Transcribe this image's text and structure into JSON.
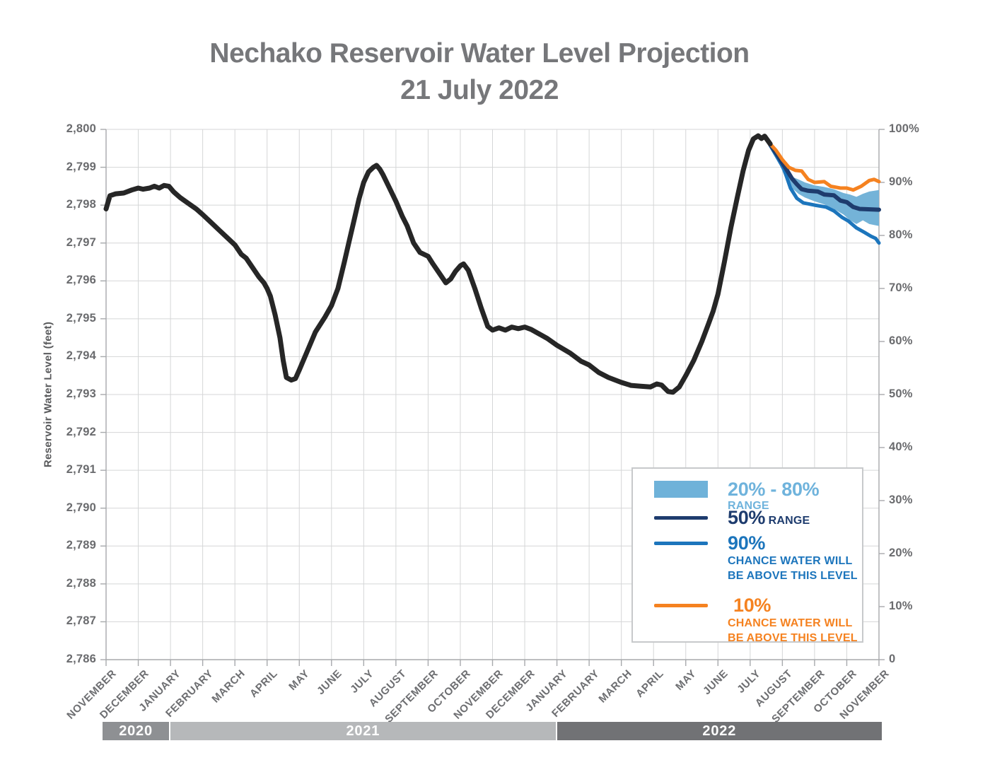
{
  "title": {
    "line1": "Nechako Reservoir Water Level Projection",
    "line2": "21 July 2022"
  },
  "y_axis": {
    "label": "Reservoir Water Level (feet)",
    "ticks": [
      "2,800",
      "2,799",
      "2,798",
      "2,797",
      "2,796",
      "2,795",
      "2,794",
      "2,793",
      "2,792",
      "2,791",
      "2,790",
      "2,789",
      "2,788",
      "2,787",
      "2,786"
    ]
  },
  "right_axis": {
    "ticks": [
      "100%",
      "90%",
      "80%",
      "70%",
      "60%",
      "50%",
      "40%",
      "30%",
      "20%",
      "10%",
      "0"
    ]
  },
  "year_bands": [
    {
      "label": "2020",
      "start": 0,
      "end": 2,
      "color": "#8E9093"
    },
    {
      "label": "2021",
      "start": 2,
      "end": 14,
      "color": "#B6B8BA"
    },
    {
      "label": "2022",
      "start": 14,
      "end": 24,
      "color": "#717275"
    }
  ],
  "legend": {
    "items": [
      {
        "big": "20% - 80%",
        "small": "RANGE"
      },
      {
        "big": "50%",
        "small": "RANGE"
      },
      {
        "big": "90%",
        "sub1": "CHANCE WATER WILL",
        "sub2": "BE ABOVE THIS LEVEL"
      },
      {
        "big": "10%",
        "sub1": "CHANCE WATER WILL",
        "sub2": "BE ABOVE THIS LEVEL"
      }
    ]
  },
  "colors": {
    "historical": "#262626",
    "orange_10pct": "#F58220",
    "navy_50pct": "#1E3C6E",
    "blue_90pct": "#1C75BC",
    "band_20_80": "#74B3D8",
    "gridline": "#D5D6D7",
    "axis": "#A7A9AC",
    "title_text": "#76777A",
    "axis_text": "#6A6B6E"
  },
  "chart_data": {
    "type": "line",
    "title": "Nechako Reservoir Water Level Projection 21 July 2022",
    "xlabel": "",
    "ylabel": "Reservoir Water Level (feet)",
    "x_unit": "months since November 2020 (0 = Nov 2020, 24 = Nov 2022)",
    "x_labels": [
      "NOVEMBER",
      "DECEMBER",
      "JANUARY",
      "FEBRUARY",
      "MARCH",
      "APRIL",
      "MAY",
      "JUNE",
      "JULY",
      "AUGUST",
      "SEPTEMBER",
      "OCTOBER",
      "NOVEMBER",
      "DECEMBER",
      "JANUARY",
      "FEBRUARY",
      "MARCH",
      "APRIL",
      "MAY",
      "JUNE",
      "JULY",
      "AUGUST",
      "SEPTEMBER",
      "OCTOBER",
      "NOVEMBER"
    ],
    "ylim": [
      2786,
      2800
    ],
    "y2lim": [
      0,
      100
    ],
    "grid": true,
    "legend_position": "lower right",
    "series": [
      {
        "name": "Historical water level",
        "color": "#262626",
        "width": 7,
        "points": [
          [
            0,
            2797.9
          ],
          [
            0.12,
            2798.25
          ],
          [
            0.3,
            2798.3
          ],
          [
            0.55,
            2798.32
          ],
          [
            0.8,
            2798.4
          ],
          [
            1,
            2798.45
          ],
          [
            1.15,
            2798.42
          ],
          [
            1.35,
            2798.45
          ],
          [
            1.5,
            2798.5
          ],
          [
            1.65,
            2798.45
          ],
          [
            1.8,
            2798.52
          ],
          [
            1.95,
            2798.5
          ],
          [
            2.1,
            2798.35
          ],
          [
            2.3,
            2798.2
          ],
          [
            2.55,
            2798.05
          ],
          [
            2.8,
            2797.9
          ],
          [
            3,
            2797.75
          ],
          [
            3.25,
            2797.55
          ],
          [
            3.5,
            2797.35
          ],
          [
            3.75,
            2797.15
          ],
          [
            4,
            2796.95
          ],
          [
            4.2,
            2796.7
          ],
          [
            4.35,
            2796.6
          ],
          [
            4.55,
            2796.35
          ],
          [
            4.75,
            2796.1
          ],
          [
            4.9,
            2795.95
          ],
          [
            5,
            2795.8
          ],
          [
            5.1,
            2795.6
          ],
          [
            5.25,
            2795.1
          ],
          [
            5.4,
            2794.5
          ],
          [
            5.5,
            2793.9
          ],
          [
            5.6,
            2793.45
          ],
          [
            5.75,
            2793.38
          ],
          [
            5.88,
            2793.42
          ],
          [
            6,
            2793.65
          ],
          [
            6.2,
            2794.05
          ],
          [
            6.5,
            2794.65
          ],
          [
            6.8,
            2795.05
          ],
          [
            7,
            2795.35
          ],
          [
            7.2,
            2795.8
          ],
          [
            7.4,
            2796.5
          ],
          [
            7.55,
            2797.05
          ],
          [
            7.7,
            2797.6
          ],
          [
            7.85,
            2798.15
          ],
          [
            8,
            2798.6
          ],
          [
            8.15,
            2798.88
          ],
          [
            8.3,
            2799.0
          ],
          [
            8.4,
            2799.05
          ],
          [
            8.5,
            2798.95
          ],
          [
            8.6,
            2798.8
          ],
          [
            8.8,
            2798.45
          ],
          [
            9,
            2798.1
          ],
          [
            9.2,
            2797.7
          ],
          [
            9.35,
            2797.45
          ],
          [
            9.55,
            2797.0
          ],
          [
            9.75,
            2796.75
          ],
          [
            10,
            2796.65
          ],
          [
            10.15,
            2796.45
          ],
          [
            10.35,
            2796.2
          ],
          [
            10.55,
            2795.95
          ],
          [
            10.7,
            2796.05
          ],
          [
            10.85,
            2796.25
          ],
          [
            11,
            2796.4
          ],
          [
            11.1,
            2796.45
          ],
          [
            11.25,
            2796.28
          ],
          [
            11.45,
            2795.8
          ],
          [
            11.65,
            2795.28
          ],
          [
            11.85,
            2794.8
          ],
          [
            12,
            2794.7
          ],
          [
            12.2,
            2794.76
          ],
          [
            12.4,
            2794.7
          ],
          [
            12.6,
            2794.78
          ],
          [
            12.8,
            2794.74
          ],
          [
            13,
            2794.78
          ],
          [
            13.2,
            2794.72
          ],
          [
            13.45,
            2794.6
          ],
          [
            13.7,
            2794.48
          ],
          [
            14,
            2794.3
          ],
          [
            14.4,
            2794.1
          ],
          [
            14.75,
            2793.88
          ],
          [
            15,
            2793.78
          ],
          [
            15.3,
            2793.58
          ],
          [
            15.6,
            2793.45
          ],
          [
            16,
            2793.32
          ],
          [
            16.3,
            2793.24
          ],
          [
            16.6,
            2793.22
          ],
          [
            16.9,
            2793.2
          ],
          [
            17.1,
            2793.28
          ],
          [
            17.25,
            2793.25
          ],
          [
            17.45,
            2793.08
          ],
          [
            17.6,
            2793.06
          ],
          [
            17.8,
            2793.2
          ],
          [
            18,
            2793.5
          ],
          [
            18.25,
            2793.9
          ],
          [
            18.5,
            2794.4
          ],
          [
            18.7,
            2794.85
          ],
          [
            18.85,
            2795.2
          ],
          [
            19,
            2795.65
          ],
          [
            19.2,
            2796.5
          ],
          [
            19.4,
            2797.4
          ],
          [
            19.6,
            2798.2
          ],
          [
            19.78,
            2798.9
          ],
          [
            19.95,
            2799.45
          ],
          [
            20.1,
            2799.75
          ],
          [
            20.25,
            2799.83
          ],
          [
            20.35,
            2799.76
          ],
          [
            20.45,
            2799.82
          ],
          [
            20.62,
            2799.62
          ]
        ]
      },
      {
        "name": "10% chance water will be above this level",
        "color": "#F58220",
        "width": 5,
        "points": [
          [
            20.62,
            2799.62
          ],
          [
            20.8,
            2799.45
          ],
          [
            21,
            2799.2
          ],
          [
            21.2,
            2799.0
          ],
          [
            21.4,
            2798.92
          ],
          [
            21.6,
            2798.9
          ],
          [
            21.8,
            2798.68
          ],
          [
            22,
            2798.6
          ],
          [
            22.3,
            2798.62
          ],
          [
            22.5,
            2798.5
          ],
          [
            22.8,
            2798.45
          ],
          [
            23,
            2798.45
          ],
          [
            23.2,
            2798.4
          ],
          [
            23.45,
            2798.5
          ],
          [
            23.7,
            2798.65
          ],
          [
            23.85,
            2798.68
          ],
          [
            24,
            2798.62
          ]
        ]
      },
      {
        "name": "50% range",
        "color": "#1E3C6E",
        "width": 6,
        "points": [
          [
            20.62,
            2799.6
          ],
          [
            20.85,
            2799.32
          ],
          [
            21.1,
            2798.98
          ],
          [
            21.3,
            2798.7
          ],
          [
            21.45,
            2798.55
          ],
          [
            21.6,
            2798.42
          ],
          [
            21.8,
            2798.38
          ],
          [
            22.1,
            2798.36
          ],
          [
            22.3,
            2798.28
          ],
          [
            22.6,
            2798.26
          ],
          [
            22.8,
            2798.12
          ],
          [
            23,
            2798.08
          ],
          [
            23.2,
            2797.95
          ],
          [
            23.4,
            2797.9
          ],
          [
            24,
            2797.88
          ]
        ]
      },
      {
        "name": "90% chance water will be above this level",
        "color": "#1C75BC",
        "width": 5,
        "points": [
          [
            20.62,
            2799.58
          ],
          [
            20.85,
            2799.25
          ],
          [
            21.05,
            2798.95
          ],
          [
            21.25,
            2798.45
          ],
          [
            21.45,
            2798.18
          ],
          [
            21.65,
            2798.06
          ],
          [
            22,
            2798.0
          ],
          [
            22.35,
            2797.95
          ],
          [
            22.6,
            2797.85
          ],
          [
            22.85,
            2797.68
          ],
          [
            23.05,
            2797.58
          ],
          [
            23.3,
            2797.4
          ],
          [
            23.55,
            2797.28
          ],
          [
            23.75,
            2797.18
          ],
          [
            23.9,
            2797.12
          ],
          [
            24,
            2797.0
          ]
        ]
      }
    ],
    "band": {
      "name": "20% - 80% range",
      "color": "#74B3D8",
      "points_m_hi_lo": [
        [
          20.75,
          2799.5,
          2799.42
        ],
        [
          20.9,
          2799.25,
          2799.1
        ],
        [
          21.1,
          2798.95,
          2798.7
        ],
        [
          21.3,
          2798.75,
          2798.45
        ],
        [
          21.5,
          2798.68,
          2798.3
        ],
        [
          21.7,
          2798.6,
          2798.2
        ],
        [
          22,
          2798.52,
          2798.1
        ],
        [
          22.3,
          2798.48,
          2798.02
        ],
        [
          22.6,
          2798.42,
          2797.9
        ],
        [
          22.9,
          2798.32,
          2797.75
        ],
        [
          23.1,
          2798.28,
          2797.6
        ],
        [
          23.3,
          2798.22,
          2797.5
        ],
        [
          23.5,
          2798.3,
          2797.6
        ],
        [
          23.7,
          2798.36,
          2797.5
        ],
        [
          24,
          2798.4,
          2797.45
        ]
      ]
    }
  }
}
